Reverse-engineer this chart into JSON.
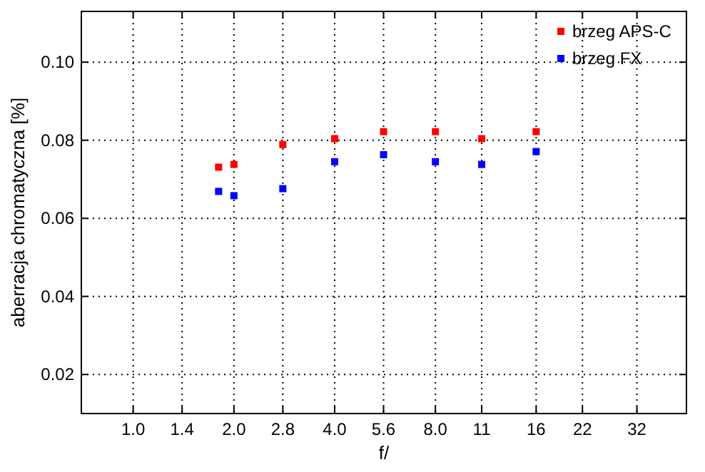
{
  "chart_data": {
    "type": "scatter",
    "xlabel": "f/",
    "ylabel": "aberracja chromatyczna [%]",
    "log": "x",
    "xlim": [
      0.7,
      45
    ],
    "ylim": [
      0.01,
      0.113
    ],
    "xticks": [
      {
        "value": 1,
        "label": "1.0"
      },
      1.4,
      {
        "value": 2,
        "label": "2.0"
      },
      2.8,
      {
        "value": 4,
        "label": "4.0"
      },
      5.6,
      {
        "value": 8,
        "label": "8.0"
      },
      11,
      16,
      22,
      32
    ],
    "yticks": [
      0.02,
      0.04,
      0.06,
      0.08,
      {
        "value": 0.1,
        "label": "0.10"
      }
    ],
    "grid": true,
    "legend": "top right",
    "marker": "square",
    "series": [
      {
        "name": "brzeg APS-C",
        "color": "#ff0000",
        "x": [
          1.8,
          2,
          2.8,
          4,
          5.6,
          8,
          11,
          16
        ],
        "values": [
          0.0731,
          0.0738,
          0.0789,
          0.0804,
          0.0822,
          0.0822,
          0.0804,
          0.0822
        ]
      },
      {
        "name": "brzeg FX",
        "color": "#0000ff",
        "x": [
          1.8,
          2,
          2.8,
          4,
          5.6,
          8,
          11,
          16
        ],
        "values": [
          0.0669,
          0.0658,
          0.0676,
          0.0745,
          0.0763,
          0.0745,
          0.0738,
          0.0771
        ]
      }
    ]
  }
}
